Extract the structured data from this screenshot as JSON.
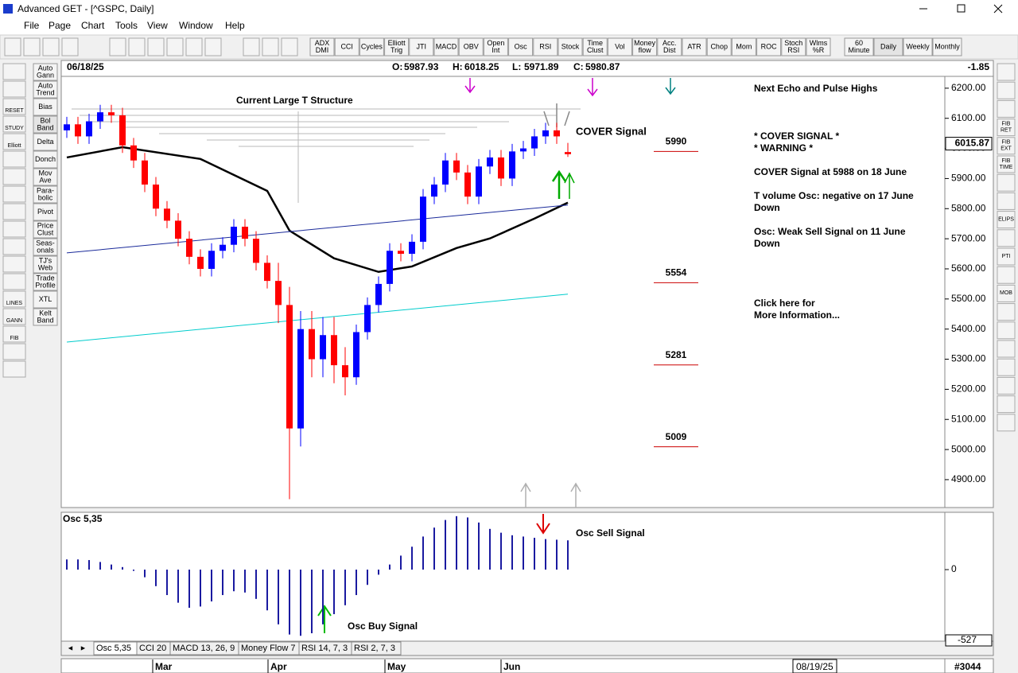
{
  "window": {
    "title": "Advanced GET - [^GSPC, Daily]"
  },
  "menu": [
    "File",
    "Page",
    "Chart",
    "Tools",
    "View",
    "Window",
    "Help"
  ],
  "toolbar": [
    [
      "ADX",
      "DMI"
    ],
    [
      "CCI"
    ],
    [
      "Cycles"
    ],
    [
      "Elliott",
      "Trig"
    ],
    [
      "JTI"
    ],
    [
      "MACD"
    ],
    [
      "OBV"
    ],
    [
      "Open",
      "Int"
    ],
    [
      "Osc"
    ],
    [
      "RSI"
    ],
    [
      "Stock"
    ],
    [
      "Time",
      "Clust"
    ],
    [
      "Vol"
    ],
    [
      "Money",
      "flow"
    ],
    [
      "Acc.",
      "Dist"
    ],
    [
      "ATR"
    ],
    [
      "Chop"
    ],
    [
      "Mom"
    ],
    [
      "ROC"
    ],
    [
      "Stoch",
      "RSI"
    ],
    [
      "Wlms",
      "%R"
    ]
  ],
  "periods": [
    [
      "60",
      "Minute"
    ],
    [
      "Daily"
    ],
    [
      "Weekly"
    ],
    [
      "Monthly"
    ]
  ],
  "left_tools": [
    [
      "Auto",
      "Gann"
    ],
    [
      "Auto",
      "Trend"
    ],
    [
      "Bias"
    ],
    [
      "Bol",
      "Band"
    ],
    [
      "Delta"
    ],
    [
      "Donch"
    ],
    [
      "Mov",
      "Ave"
    ],
    [
      "Para-",
      "bolic"
    ],
    [
      "Pivot"
    ],
    [
      "Price",
      "Clust"
    ],
    [
      "Seas-",
      "onals"
    ],
    [
      "TJ's",
      "Web"
    ],
    [
      "Trade",
      "Profile"
    ],
    [
      "XTL"
    ],
    [
      "Kelt",
      "Band"
    ]
  ],
  "icon_labels": [
    "RESET",
    "STUDY",
    "Elliott",
    "LINES",
    "GANN",
    "FIB"
  ],
  "right_tools": [
    [
      "FIB",
      "RET"
    ],
    [
      "FIB",
      "EXT"
    ],
    [
      "FIB",
      "TIME"
    ],
    [
      "ELIPS"
    ],
    [
      "PTI"
    ],
    [
      "MOB"
    ]
  ],
  "header": {
    "date": "06/18/25",
    "labels": [
      "O:",
      "H:",
      "L:",
      "C:"
    ],
    "change": -1.85
  },
  "info_panel": {
    "title": "Next Echo and Pulse Highs",
    "lines": [
      "* COVER SIGNAL *",
      "* WARNING *",
      "COVER Signal at 5988 on 18 June",
      "T volume Osc: negative on 17 June",
      "Down",
      "Osc: Weak Sell Signal on 11 June",
      "Down",
      "Click here for",
      "More Information..."
    ]
  },
  "tabs": [
    "Osc 5,35",
    "CCI 20",
    "MACD 13, 26, 9",
    "Money Flow 7",
    "RSI 14, 7, 3",
    "RSI 2, 7, 3"
  ],
  "bottom": {
    "months": [
      "Mar",
      "Apr",
      "May",
      "Jun"
    ],
    "end_date": "08/19/25",
    "count": "#3044"
  },
  "chart_data": [
    {
      "type": "candlestick",
      "open": [
        6060,
        6080,
        6040,
        6090,
        6120,
        6110,
        6010,
        5960,
        5880,
        5800,
        5760,
        5700,
        5640,
        5600,
        5660,
        5680,
        5740,
        5700,
        5620,
        5560,
        5480,
        5070,
        5400,
        5300,
        5380,
        5280,
        5240,
        5390,
        5480,
        5550,
        5660,
        5650,
        5690,
        5840,
        5880,
        5960,
        5920,
        5840,
        5940,
        5970,
        5900,
        5990,
        6000,
        6040,
        6060,
        5987.93
      ],
      "high": [
        6105,
        6105,
        6115,
        6145,
        6145,
        6135,
        6035,
        5985,
        5905,
        5825,
        5785,
        5725,
        5665,
        5685,
        5705,
        5765,
        5765,
        5725,
        5645,
        5620,
        5540,
        5460,
        5460,
        5440,
        5440,
        5340,
        5415,
        5505,
        5575,
        5685,
        5685,
        5715,
        5865,
        5905,
        5985,
        5985,
        5945,
        5965,
        5995,
        5995,
        6015,
        6025,
        6065,
        6085,
        6085,
        6018.25
      ],
      "low": [
        6035,
        6015,
        6015,
        6065,
        6085,
        5985,
        5935,
        5855,
        5775,
        5735,
        5675,
        5615,
        5575,
        5575,
        5635,
        5655,
        5675,
        5595,
        5535,
        5420,
        4835,
        5010,
        5240,
        5240,
        5220,
        5180,
        5215,
        5365,
        5455,
        5525,
        5625,
        5625,
        5665,
        5815,
        5855,
        5895,
        5815,
        5815,
        5915,
        5875,
        5875,
        5965,
        5975,
        6015,
        6015,
        5971.89
      ],
      "close": [
        6080,
        6040,
        6090,
        6120,
        6110,
        6010,
        5960,
        5880,
        5800,
        5760,
        5700,
        5640,
        5600,
        5660,
        5680,
        5740,
        5700,
        5620,
        5560,
        5480,
        5070,
        5400,
        5300,
        5380,
        5280,
        5240,
        5390,
        5480,
        5550,
        5660,
        5650,
        5690,
        5840,
        5880,
        5960,
        5920,
        5840,
        5940,
        5970,
        5900,
        5990,
        6000,
        6040,
        6060,
        6040,
        5980.87
      ],
      "up_color": "#0000ff",
      "down_color": "#ff0000",
      "overlays": [
        {
          "color": "#000000",
          "width": 2.5,
          "x": [
            0,
            5,
            12,
            18,
            20,
            24,
            28,
            31,
            35,
            38,
            42,
            45
          ],
          "values": [
            5970,
            6004,
            5965,
            5859,
            5727,
            5635,
            5590,
            5608,
            5669,
            5701,
            5767,
            5820
          ]
        },
        {
          "color": "#1a2a9a",
          "width": 1,
          "x": [
            0,
            45
          ],
          "values": [
            5653,
            5812
          ]
        },
        {
          "color": "#00cccc",
          "width": 1,
          "x": [
            0,
            45
          ],
          "values": [
            5357,
            5516
          ]
        }
      ],
      "ylim": [
        4810,
        6234
      ],
      "yticks": [
        {
          "value": 4900,
          "label": "4900.00"
        },
        {
          "value": 5000,
          "label": "5000.00"
        },
        {
          "value": 5100,
          "label": "5100.00"
        },
        {
          "value": 5200,
          "label": "5200.00"
        },
        {
          "value": 5300,
          "label": "5300.00"
        },
        {
          "value": 5400,
          "label": "5400.00"
        },
        {
          "value": 5500,
          "label": "5500.00"
        },
        {
          "value": 5600,
          "label": "5600.00"
        },
        {
          "value": 5700,
          "label": "5700.00"
        },
        {
          "value": 5800,
          "label": "5800.00"
        },
        {
          "value": 5900,
          "label": "5900.00"
        },
        {
          "value": 6000,
          "label": "6000.00"
        },
        {
          "value": 6100,
          "label": "6100.00"
        },
        {
          "value": 6200,
          "label": "6200.00"
        }
      ],
      "levels": [
        5990,
        5554,
        5281,
        5009
      ],
      "level_color": "#cc0000",
      "marker_price": 6015.87,
      "annotations": [
        "Current Large T Structure",
        "COVER Signal"
      ]
    },
    {
      "type": "bar",
      "title": "Osc 5,35",
      "values": [
        80,
        80,
        75,
        60,
        40,
        20,
        -10,
        -60,
        -130,
        -200,
        -260,
        -300,
        -290,
        -250,
        -200,
        -170,
        -180,
        -230,
        -320,
        -430,
        -510,
        -520,
        -500,
        -430,
        -350,
        -280,
        -200,
        -120,
        -40,
        40,
        110,
        180,
        260,
        330,
        390,
        420,
        410,
        370,
        320,
        290,
        270,
        260,
        250,
        240,
        235,
        230
      ],
      "color": "#1a1aa0",
      "ylim": [
        -556,
        444
      ],
      "yticks": [
        0
      ],
      "current": -527,
      "annotations": [
        "Osc Sell Signal",
        "Osc Buy Signal"
      ]
    }
  ]
}
